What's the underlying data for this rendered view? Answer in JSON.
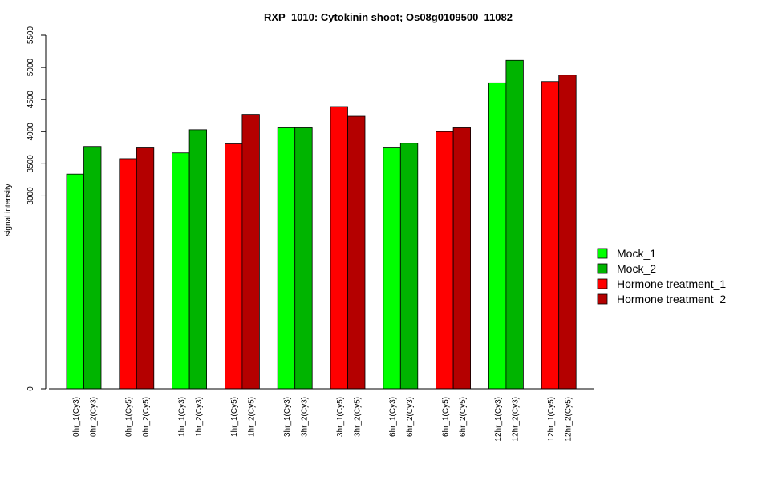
{
  "chart_data": {
    "type": "bar",
    "title": "RXP_1010: Cytokinin shoot; Os08g0109500_11082",
    "xlabel": "",
    "ylabel": "signal intensity",
    "ylim": [
      0,
      5500
    ],
    "yticks": [
      0,
      3000,
      3500,
      4000,
      4500,
      5000,
      5500
    ],
    "categories": [
      "0hr_1(Cy3)",
      "0hr_2(Cy3)",
      "0hr_1(Cy5)",
      "0hr_2(Cy5)",
      "1hr_1(Cy3)",
      "1hr_2(Cy3)",
      "1hr_1(Cy5)",
      "1hr_2(Cy5)",
      "3hr_1(Cy3)",
      "3hr_2(Cy3)",
      "3hr_1(Cy5)",
      "3hr_2(Cy5)",
      "6hr_1(Cy3)",
      "6hr_2(Cy3)",
      "6hr_1(Cy5)",
      "6hr_2(Cy5)",
      "12hr_1(Cy3)",
      "12hr_2(Cy3)",
      "12hr_1(Cy5)",
      "12hr_2(Cy5)"
    ],
    "values": [
      3340,
      3770,
      3580,
      3760,
      3670,
      4030,
      3810,
      4270,
      4060,
      4060,
      4390,
      4240,
      3760,
      3820,
      4000,
      4060,
      4760,
      5110,
      4780,
      4880
    ],
    "bar_series": [
      0,
      1,
      2,
      3,
      0,
      1,
      2,
      3,
      0,
      1,
      2,
      3,
      0,
      1,
      2,
      3,
      0,
      1,
      2,
      3
    ],
    "series": [
      {
        "name": "Mock_1",
        "color": "#00ff00"
      },
      {
        "name": "Mock_2",
        "color": "#00b400"
      },
      {
        "name": "Hormone treatment_1",
        "color": "#ff0000"
      },
      {
        "name": "Hormone treatment_2",
        "color": "#b40000"
      }
    ],
    "legend_position": "right",
    "grid": false
  }
}
